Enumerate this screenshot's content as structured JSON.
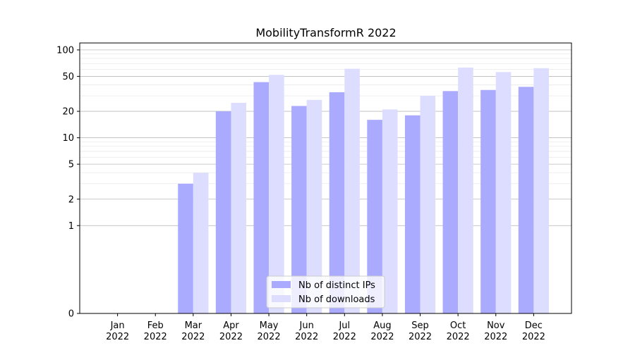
{
  "chart_data": {
    "type": "bar",
    "title": "MobilityTransformR 2022",
    "xlabel": "",
    "ylabel": "",
    "yscale": "symlog",
    "ylim": [
      0,
      120
    ],
    "yticks": [
      0,
      1,
      2,
      5,
      10,
      20,
      50,
      100
    ],
    "grid": true,
    "legend": "lower-center",
    "categories": [
      [
        "Jan",
        "2022"
      ],
      [
        "Feb",
        "2022"
      ],
      [
        "Mar",
        "2022"
      ],
      [
        "Apr",
        "2022"
      ],
      [
        "May",
        "2022"
      ],
      [
        "Jun",
        "2022"
      ],
      [
        "Jul",
        "2022"
      ],
      [
        "Aug",
        "2022"
      ],
      [
        "Sep",
        "2022"
      ],
      [
        "Oct",
        "2022"
      ],
      [
        "Nov",
        "2022"
      ],
      [
        "Dec",
        "2022"
      ]
    ],
    "series": [
      {
        "name": "Nb of distinct IPs",
        "color": "#aaaaff",
        "values": [
          0,
          0,
          3,
          20,
          43,
          23,
          33,
          16,
          18,
          34,
          35,
          38
        ]
      },
      {
        "name": "Nb of downloads",
        "color": "#ddddff",
        "values": [
          0,
          0,
          4,
          25,
          52,
          27,
          61,
          21,
          30,
          63,
          56,
          62
        ]
      }
    ]
  }
}
